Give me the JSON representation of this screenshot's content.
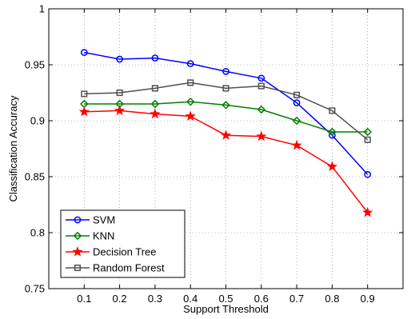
{
  "chart_data": {
    "type": "line",
    "title": "",
    "xlabel": "Support Threshold",
    "ylabel": "Classification Accuracy",
    "x": [
      0.1,
      0.2,
      0.3,
      0.4,
      0.5,
      0.6,
      0.7,
      0.8,
      0.9
    ],
    "x_tick_labels": [
      "0.1",
      "0.2",
      "0.3",
      "0.4",
      "0.5",
      "0.6",
      "0.7",
      "0.8",
      "0.9"
    ],
    "xlim": [
      0,
      1
    ],
    "ylim": [
      0.75,
      1
    ],
    "y_ticks": [
      0.75,
      0.8,
      0.85,
      0.9,
      0.95,
      1
    ],
    "y_tick_labels": [
      "0.75",
      "0.8",
      "0.85",
      "0.9",
      "0.95",
      "1"
    ],
    "grid": "dotted",
    "legend_position": "bottom-left",
    "series": [
      {
        "name": "SVM",
        "color": "#0000ff",
        "marker": "circle",
        "values": [
          0.961,
          0.955,
          0.956,
          0.951,
          0.944,
          0.938,
          0.916,
          0.887,
          0.852
        ]
      },
      {
        "name": "KNN",
        "color": "#008000",
        "marker": "diamond",
        "values": [
          0.915,
          0.915,
          0.915,
          0.917,
          0.914,
          0.91,
          0.9,
          0.89,
          0.89
        ]
      },
      {
        "name": "Decision Tree",
        "color": "#ff0000",
        "marker": "star",
        "values": [
          0.908,
          0.909,
          0.906,
          0.904,
          0.887,
          0.886,
          0.878,
          0.859,
          0.818
        ]
      },
      {
        "name": "Random Forest",
        "color": "#505050",
        "marker": "square",
        "values": [
          0.924,
          0.925,
          0.929,
          0.934,
          0.929,
          0.931,
          0.923,
          0.909,
          0.883
        ]
      }
    ]
  }
}
